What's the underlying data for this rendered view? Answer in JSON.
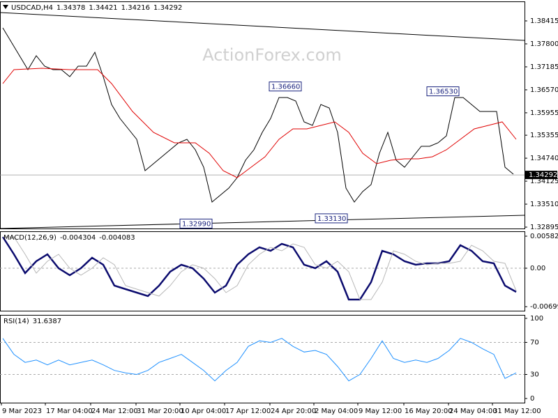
{
  "chart_data": [
    {
      "type": "line",
      "title": "USDCAD,H4",
      "readings": [
        1.34378,
        1.34421,
        1.34216,
        1.34292
      ],
      "watermark": "ActionForex.com",
      "xlim": [
        0,
        376
      ],
      "ylim": [
        1.32858,
        1.38937
      ],
      "yticks": [
        1.38415,
        {
          "value": 1.378,
          "label": "1.37800"
        },
        1.37185,
        {
          "value": 1.3657,
          "label": "1.36570"
        },
        1.35955,
        1.35355,
        {
          "value": 1.3474,
          "label": "1.34740"
        },
        1.34125,
        {
          "value": 1.3351,
          "label": "1.33510"
        },
        1.32895
      ],
      "x": [
        2,
        8,
        14,
        20,
        26,
        32,
        38,
        44,
        50,
        56,
        62,
        68,
        74,
        80,
        86,
        92,
        98,
        104,
        110,
        116,
        122,
        128,
        134,
        140,
        146,
        152,
        158,
        164,
        170,
        176,
        182,
        188,
        194,
        200,
        206,
        212,
        218,
        224,
        230,
        236,
        242,
        248,
        254,
        260,
        266,
        272,
        278,
        284,
        290,
        296,
        302,
        308,
        314,
        320,
        326,
        332,
        338,
        344,
        350,
        356,
        362,
        368
      ],
      "series": [
        {
          "color": "#000000",
          "values": [
            1.38228,
            1.37856,
            1.37483,
            1.3711,
            1.37483,
            1.37203,
            1.3711,
            1.3711,
            1.36923,
            1.37203,
            1.37203,
            1.37576,
            1.36923,
            1.36177,
            1.35804,
            1.35524,
            1.35245,
            1.34405,
            1.34592,
            1.34778,
            1.34965,
            1.35151,
            1.35245,
            1.34965,
            1.34499,
            1.33566,
            1.33753,
            1.33939,
            1.34219,
            1.34685,
            1.34965,
            1.35431,
            1.35804,
            1.36363,
            1.36363,
            1.3627,
            1.35711,
            1.35618,
            1.36177,
            1.36084,
            1.35431,
            1.33939,
            1.33566,
            1.33846,
            1.34032,
            1.34872,
            1.35431,
            1.34685,
            1.34499,
            1.34778,
            1.35058,
            1.35058,
            1.35151,
            1.35338,
            1.36363,
            1.36363,
            1.36177,
            1.35991,
            1.35991,
            1.35991,
            1.34499,
            1.34312
          ]
        },
        {
          "color": "#e00000",
          "x": [
            2,
            10,
            30,
            50,
            70,
            80,
            95,
            110,
            125,
            140,
            150,
            160,
            170,
            180,
            190,
            200,
            210,
            220,
            230,
            240,
            250,
            260,
            270,
            280,
            290,
            300,
            310,
            320,
            330,
            340,
            350,
            360,
            370
          ],
          "values": [
            1.36737,
            1.3711,
            1.37147,
            1.3711,
            1.3711,
            1.36737,
            1.35991,
            1.35431,
            1.35151,
            1.35151,
            1.34872,
            1.34405,
            1.34219,
            1.34499,
            1.34778,
            1.35245,
            1.35524,
            1.35524,
            1.35618,
            1.35711,
            1.35431,
            1.34872,
            1.34592,
            1.34685,
            1.34722,
            1.34722,
            1.34778,
            1.34965,
            1.35245,
            1.35524,
            1.35618,
            1.35711,
            1.35245
          ]
        }
      ],
      "trendlines": [
        {
          "x": [
            0,
            376
          ],
          "values": [
            1.38639,
            1.37893
          ]
        },
        {
          "x": [
            0,
            376
          ],
          "values": [
            1.32858,
            1.33212
          ]
        }
      ],
      "annotations": [
        {
          "x": 216,
          "value": 1.3666,
          "label": "1.36660"
        },
        {
          "x": 152,
          "value": 1.3299,
          "label": "1.32990"
        },
        {
          "x": 249,
          "value": 1.3313,
          "label": "1.33130"
        },
        {
          "x": 329,
          "value": 1.3653,
          "label": "1.36530"
        }
      ],
      "last_price": 1.34292
    },
    {
      "type": "line",
      "title": "MACD(12,26,9)",
      "readings": [
        -0.004304,
        -0.004083
      ],
      "xlim": [
        0,
        376
      ],
      "ylim": [
        -0.00772,
        0.006707
      ],
      "yticks": [
        0.005821,
        {
          "value": 0,
          "label": "0.00"
        },
        -0.006991
      ],
      "levels": [
        0
      ],
      "x": [
        2,
        10,
        18,
        26,
        34,
        42,
        50,
        58,
        66,
        74,
        82,
        90,
        98,
        106,
        114,
        122,
        130,
        138,
        146,
        154,
        162,
        170,
        178,
        186,
        194,
        202,
        210,
        218,
        226,
        234,
        242,
        250,
        258,
        266,
        274,
        282,
        290,
        298,
        306,
        314,
        322,
        330,
        338,
        346,
        354,
        362,
        370
      ],
      "series": [
        {
          "color": "#0b0b6e",
          "values": [
            0.005695,
            0.002531,
            -0.000886,
            0.001266,
            0.002531,
            0,
            -0.001266,
            0,
            0.001898,
            0.000633,
            -0.003164,
            -0.003797,
            -0.004429,
            -0.005062,
            -0.003164,
            -0.000633,
            0.000633,
            0,
            -0.001898,
            -0.004429,
            -0.003164,
            0.000633,
            0.002531,
            0.003797,
            0.003164,
            0.004429,
            0.003797,
            0.000633,
            0,
            0.001266,
            -0.000633,
            -0.005695,
            -0.005695,
            -0.002531,
            0.003164,
            0.002531,
            0.001266,
            0.000633,
            0.000886,
            0.000886,
            0.001266,
            0.004176,
            0.003164,
            0.001266,
            0.000886,
            -0.003164,
            -0.004304
          ]
        },
        {
          "color": "#b8b8b8",
          "values": [
            0.005695,
            0.005695,
            0.002531,
            -0.000886,
            0.001266,
            0.002531,
            0,
            -0.001266,
            0,
            0.001898,
            0.000633,
            -0.003164,
            -0.003797,
            -0.004429,
            -0.005062,
            -0.003164,
            -0.000633,
            0.000633,
            0,
            -0.001898,
            -0.004429,
            -0.003164,
            0.000633,
            0.002531,
            0.003797,
            0.003164,
            0.004429,
            0.003797,
            0.000633,
            0,
            0.001266,
            -0.000633,
            -0.005695,
            -0.005695,
            -0.002531,
            0.003164,
            0.002531,
            0.001266,
            0.000633,
            0.000886,
            0.000886,
            0.001266,
            0.004176,
            0.003164,
            0.001266,
            0.000886,
            -0.004083
          ]
        }
      ]
    },
    {
      "type": "line",
      "title": "RSI(14)",
      "readings": [
        31.6387
      ],
      "xlim": [
        0,
        376
      ],
      "ylim": [
        -5.2,
        104.3
      ],
      "yticks": [
        100,
        70,
        30,
        0
      ],
      "levels": [
        70,
        30
      ],
      "xticks": [
        {
          "value": 1,
          "label": "9 Mar 2023"
        },
        {
          "value": 32.5,
          "label": "17 Mar 04:00"
        },
        {
          "value": 65,
          "label": "24 Mar 12:00"
        },
        {
          "value": 97.5,
          "label": "31 Mar 20:00"
        },
        {
          "value": 129,
          "label": "10 Apr 04:00"
        },
        {
          "value": 161,
          "label": "17 Apr 12:00"
        },
        {
          "value": 193.5,
          "label": "24 Apr 20:00"
        },
        {
          "value": 225,
          "label": "2 May 04:00"
        },
        {
          "value": 256.5,
          "label": "9 May 12:00"
        },
        {
          "value": 289.5,
          "label": "16 May 20:00"
        },
        {
          "value": 321.5,
          "label": "24 May 04:00"
        },
        {
          "value": 353,
          "label": "31 May 12:00"
        }
      ],
      "x": [
        2,
        10,
        18,
        26,
        34,
        42,
        50,
        58,
        66,
        74,
        82,
        90,
        98,
        106,
        114,
        122,
        130,
        138,
        146,
        154,
        162,
        170,
        178,
        186,
        194,
        202,
        210,
        218,
        226,
        234,
        242,
        250,
        258,
        266,
        274,
        282,
        290,
        298,
        306,
        314,
        322,
        330,
        338,
        346,
        354,
        362,
        370
      ],
      "series": [
        {
          "color": "#1e90ff",
          "values": [
            75,
            55,
            45,
            48,
            42,
            48,
            42,
            45,
            48,
            42,
            35,
            32,
            30,
            35,
            45,
            50,
            55,
            45,
            35,
            22,
            35,
            45,
            65,
            72,
            70,
            75,
            65,
            58,
            60,
            55,
            40,
            22,
            30,
            50,
            72,
            50,
            45,
            48,
            45,
            50,
            60,
            75,
            70,
            62,
            55,
            25,
            32
          ]
        }
      ]
    }
  ]
}
